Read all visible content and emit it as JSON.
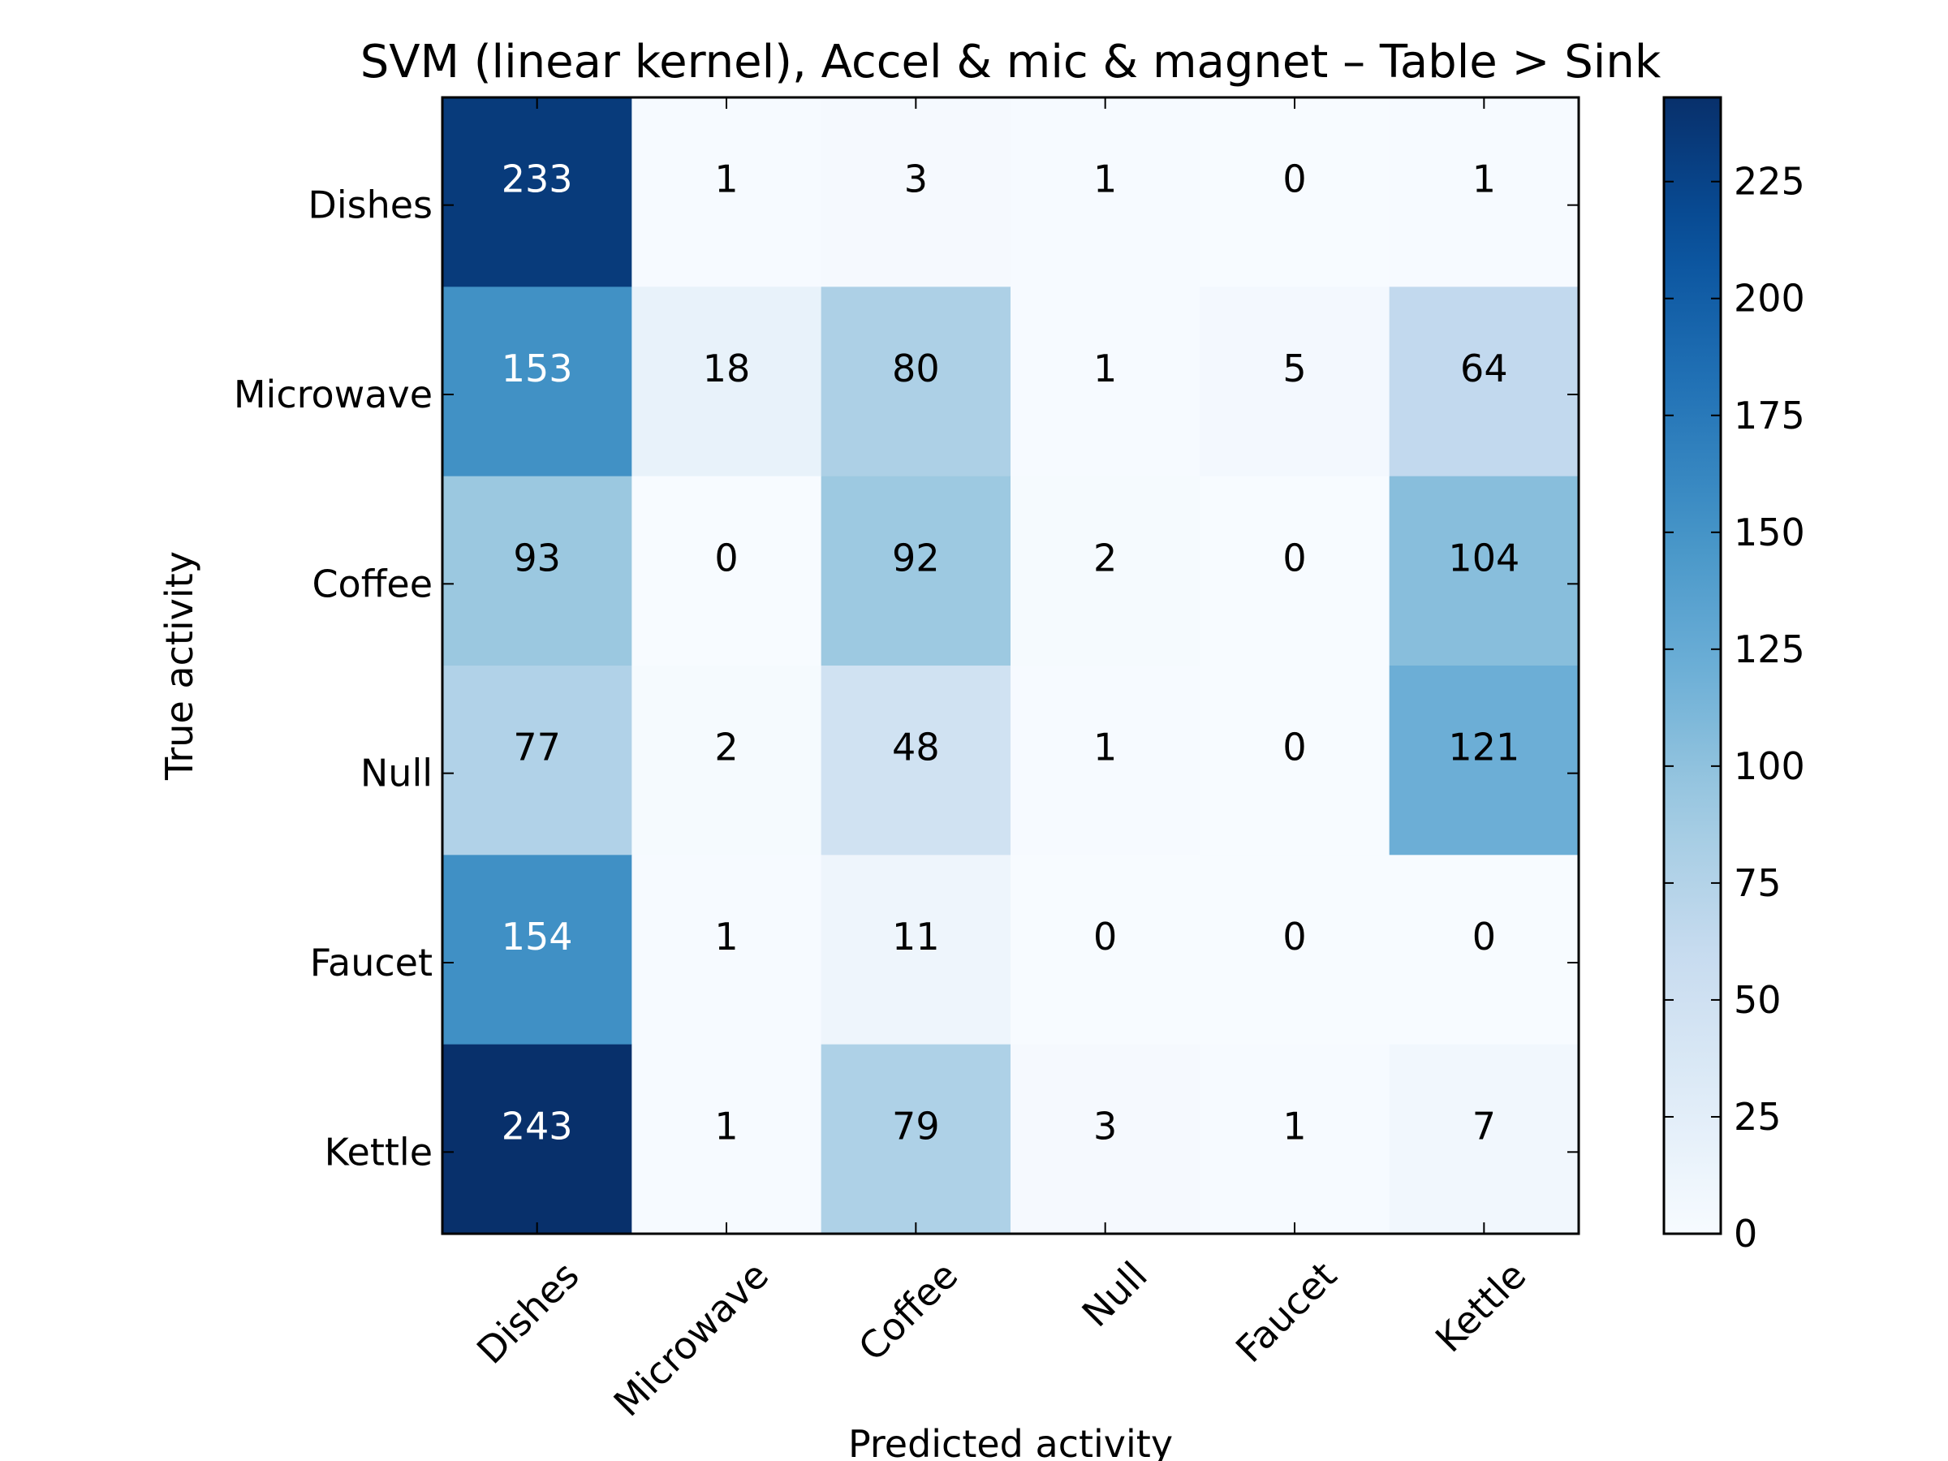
{
  "chart_data": {
    "type": "heatmap",
    "title": "SVM (linear kernel), Accel & mic & magnet – Table > Sink",
    "xlabel": "Predicted activity",
    "ylabel": "True activity",
    "x_categories": [
      "Dishes",
      "Microwave",
      "Coffee",
      "Null",
      "Faucet",
      "Kettle"
    ],
    "y_categories": [
      "Dishes",
      "Microwave",
      "Coffee",
      "Null",
      "Faucet",
      "Kettle"
    ],
    "values": [
      [
        233,
        1,
        3,
        1,
        0,
        1
      ],
      [
        153,
        18,
        80,
        1,
        5,
        64
      ],
      [
        93,
        0,
        92,
        2,
        0,
        104
      ],
      [
        77,
        2,
        48,
        1,
        0,
        121
      ],
      [
        154,
        1,
        11,
        0,
        0,
        0
      ],
      [
        243,
        1,
        79,
        3,
        1,
        7
      ]
    ],
    "colormap": "Blues",
    "colorbar": {
      "range": [
        0,
        243
      ],
      "ticks": [
        0,
        25,
        50,
        75,
        100,
        125,
        150,
        175,
        200,
        225
      ]
    },
    "colors": {
      "low": "#f7fbff",
      "high": "#08306b",
      "text_dark": "#000000",
      "text_light": "#ffffff"
    }
  }
}
